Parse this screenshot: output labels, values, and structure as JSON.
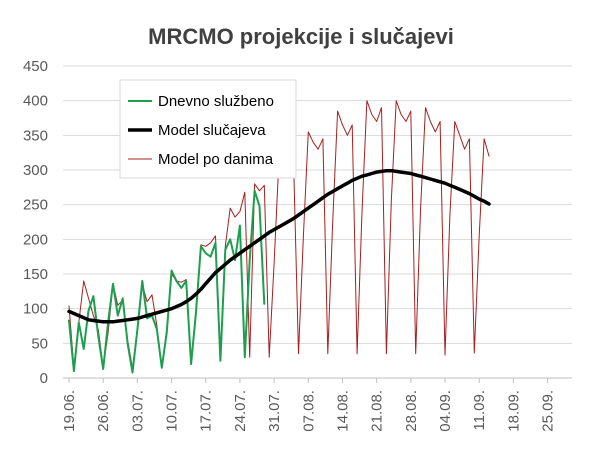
{
  "chart_data": {
    "type": "line",
    "title": "MRCMO projekcije i slučajevi",
    "xlabel": "",
    "ylabel": "",
    "ylim": [
      0,
      450
    ],
    "yticks": [
      0,
      50,
      100,
      150,
      200,
      250,
      300,
      350,
      400,
      450
    ],
    "grid": "horizontal",
    "legend_position": "top-left",
    "x_dates": [
      "19.06.",
      "20.06.",
      "21.06.",
      "22.06.",
      "23.06.",
      "24.06.",
      "25.06.",
      "26.06.",
      "27.06.",
      "28.06.",
      "29.06.",
      "30.06.",
      "01.07.",
      "02.07.",
      "03.07.",
      "04.07.",
      "05.07.",
      "06.07.",
      "07.07.",
      "08.07.",
      "09.07.",
      "10.07.",
      "11.07.",
      "12.07.",
      "13.07.",
      "14.07.",
      "15.07.",
      "16.07.",
      "17.07.",
      "18.07.",
      "19.07.",
      "20.07.",
      "21.07.",
      "22.07.",
      "23.07.",
      "24.07.",
      "25.07.",
      "26.07.",
      "27.07.",
      "28.07.",
      "29.07.",
      "30.07.",
      "31.07.",
      "01.08.",
      "02.08.",
      "03.08.",
      "04.08.",
      "05.08.",
      "06.08.",
      "07.08.",
      "08.08.",
      "09.08.",
      "10.08.",
      "11.08.",
      "12.08.",
      "13.08.",
      "14.08.",
      "15.08.",
      "16.08.",
      "17.08.",
      "18.08.",
      "19.08.",
      "20.08.",
      "21.08.",
      "22.08.",
      "23.08.",
      "24.08.",
      "25.08.",
      "26.08.",
      "27.08.",
      "28.08.",
      "29.08.",
      "30.08.",
      "31.08.",
      "01.09.",
      "02.09.",
      "03.09.",
      "04.09.",
      "05.09.",
      "06.09.",
      "07.09.",
      "08.09.",
      "09.09.",
      "10.09.",
      "11.09.",
      "12.09.",
      "13.09.",
      "14.09.",
      "15.09.",
      "16.09.",
      "17.09.",
      "18.09.",
      "19.09.",
      "20.09.",
      "21.09.",
      "22.09.",
      "23.09.",
      "24.09.",
      "25.09.",
      "26.09.",
      "27.09.",
      "28.09.",
      "29.09.",
      "30.09."
    ],
    "x_tick_labels": [
      "19.06.",
      "26.06.",
      "03.07.",
      "10.07.",
      "17.07.",
      "24.07.",
      "31.07.",
      "07.08.",
      "14.08.",
      "21.08.",
      "28.08.",
      "04.09.",
      "11.09.",
      "18.09.",
      "25.09."
    ],
    "series": [
      {
        "name": "Dnevno službeno",
        "color": "#1e9e4e",
        "line_width": 2,
        "values": [
          83,
          10,
          80,
          42,
          97,
          118,
          60,
          13,
          80,
          136,
          90,
          115,
          50,
          8,
          70,
          140,
          86,
          90,
          70,
          15,
          65,
          155,
          140,
          130,
          140,
          20,
          95,
          190,
          180,
          175,
          195,
          25,
          185,
          200,
          170,
          220,
          30,
          170,
          270,
          248,
          107
        ]
      },
      {
        "name": "Model slučajeva",
        "color": "#000000",
        "line_width": 3.5,
        "values": [
          96,
          93,
          90,
          87,
          84,
          83,
          82,
          81,
          81,
          81,
          82,
          83,
          84,
          85,
          86,
          88,
          90,
          92,
          94,
          96,
          98,
          100,
          103,
          106,
          110,
          115,
          121,
          128,
          136,
          144,
          152,
          158,
          164,
          170,
          175,
          180,
          185,
          190,
          195,
          200,
          205,
          210,
          214,
          218,
          222,
          226,
          230,
          235,
          240,
          245,
          250,
          255,
          260,
          265,
          269,
          273,
          277,
          281,
          285,
          288,
          291,
          293,
          295,
          297,
          298,
          299,
          299,
          298,
          297,
          296,
          295,
          293,
          291,
          289,
          287,
          285,
          283,
          281,
          278,
          275,
          272,
          269,
          266,
          262,
          258,
          255,
          251
        ]
      },
      {
        "name": "Model po danima",
        "color": "#a52020",
        "line_width": 1,
        "values": [
          104,
          15,
          80,
          140,
          115,
          90,
          70,
          15,
          65,
          136,
          105,
          112,
          55,
          14,
          70,
          135,
          110,
          120,
          75,
          14,
          70,
          150,
          140,
          138,
          142,
          22,
          100,
          192,
          190,
          195,
          205,
          25,
          190,
          245,
          232,
          240,
          268,
          30,
          280,
          270,
          278,
          30,
          165,
          317,
          305,
          295,
          310,
          35,
          205,
          355,
          340,
          330,
          345,
          35,
          225,
          385,
          365,
          350,
          365,
          35,
          240,
          400,
          380,
          370,
          390,
          35,
          255,
          400,
          380,
          370,
          385,
          35,
          245,
          390,
          370,
          355,
          370,
          33,
          235,
          370,
          350,
          330,
          345,
          36,
          205,
          345,
          320
        ]
      }
    ]
  }
}
